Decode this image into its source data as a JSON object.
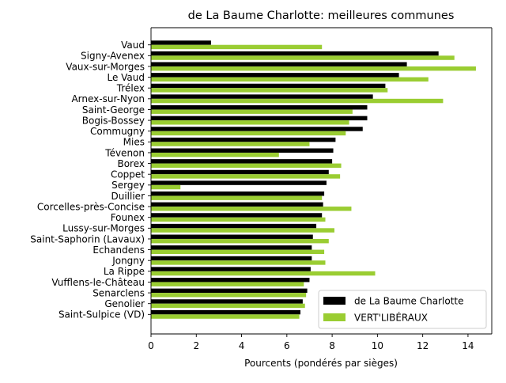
{
  "colors": {
    "series_1": "#000000",
    "series_2": "#9acd32"
  },
  "chart_data": {
    "type": "bar",
    "orientation": "horizontal",
    "title": "de La Baume Charlotte: meilleures communes",
    "xlabel": "Pourcents (pondérés par sièges)",
    "ylabel": "",
    "xlim": [
      0,
      15.05
    ],
    "xticks": [
      0,
      2,
      4,
      6,
      8,
      10,
      12,
      14
    ],
    "grid": false,
    "legend_position": "lower right",
    "categories": [
      "Vaud",
      "Signy-Avenex",
      "Vaux-sur-Morges",
      "Le Vaud",
      "Trélex",
      "Arnex-sur-Nyon",
      "Saint-George",
      "Bogis-Bossey",
      "Commugny",
      "Mies",
      "Tévenon",
      "Borex",
      "Coppet",
      "Sergey",
      "Duillier",
      "Corcelles-près-Concise",
      "Founex",
      "Lussy-sur-Morges",
      "Saint-Saphorin (Lavaux)",
      "Echandens",
      "Jongny",
      "La Rippe",
      "Vufflens-le-Château",
      "Senarclens",
      "Genolier",
      "Saint-Sulpice (VD)"
    ],
    "series": [
      {
        "name": "de La Baume Charlotte",
        "color": "#000000",
        "values": [
          2.65,
          12.7,
          11.3,
          10.95,
          10.35,
          9.8,
          9.55,
          9.55,
          9.35,
          8.15,
          8.05,
          8.0,
          7.85,
          7.75,
          7.65,
          7.6,
          7.55,
          7.3,
          7.15,
          7.1,
          7.1,
          7.05,
          7.0,
          6.9,
          6.7,
          6.6
        ]
      },
      {
        "name": "VERT'LIBÉRAUX",
        "color": "#9acd32",
        "values": [
          7.55,
          13.4,
          14.35,
          12.25,
          10.45,
          12.9,
          8.9,
          8.75,
          8.6,
          7.0,
          5.65,
          8.4,
          8.35,
          1.3,
          7.55,
          8.85,
          7.7,
          8.1,
          7.85,
          7.65,
          7.7,
          9.9,
          6.75,
          6.85,
          6.8,
          6.55
        ]
      }
    ]
  }
}
